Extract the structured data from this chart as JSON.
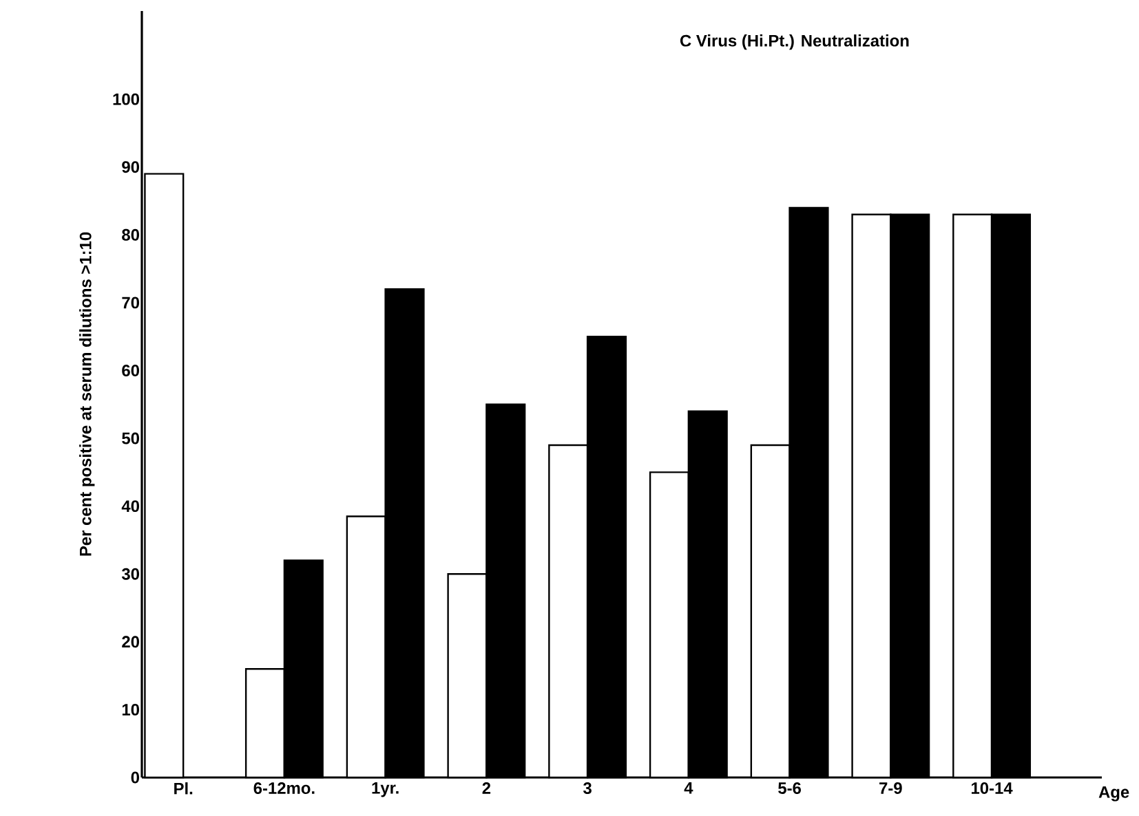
{
  "chart_data": {
    "type": "bar",
    "title": "C  Virus  (Hi.Pt.)  Neutralization",
    "xlabel": "Age",
    "ylabel": "Per cent positive at serum dilutions >1:10",
    "categories": [
      "Pl.",
      "6-12mo.",
      "1yr.",
      "2",
      "3",
      "4",
      "5-6",
      "7-9",
      "10-14"
    ],
    "series": [
      {
        "color": "#ffffff",
        "values": [
          89,
          16,
          38.5,
          30,
          49,
          45,
          49,
          83,
          83
        ]
      },
      {
        "color": "#000000",
        "values": [
          null,
          32,
          72,
          55,
          65,
          54,
          84,
          83,
          83
        ]
      }
    ],
    "ylim": [
      0,
      113
    ],
    "yticks": [
      0,
      10,
      20,
      30,
      40,
      50,
      60,
      70,
      80,
      90,
      100
    ],
    "grid": false
  }
}
